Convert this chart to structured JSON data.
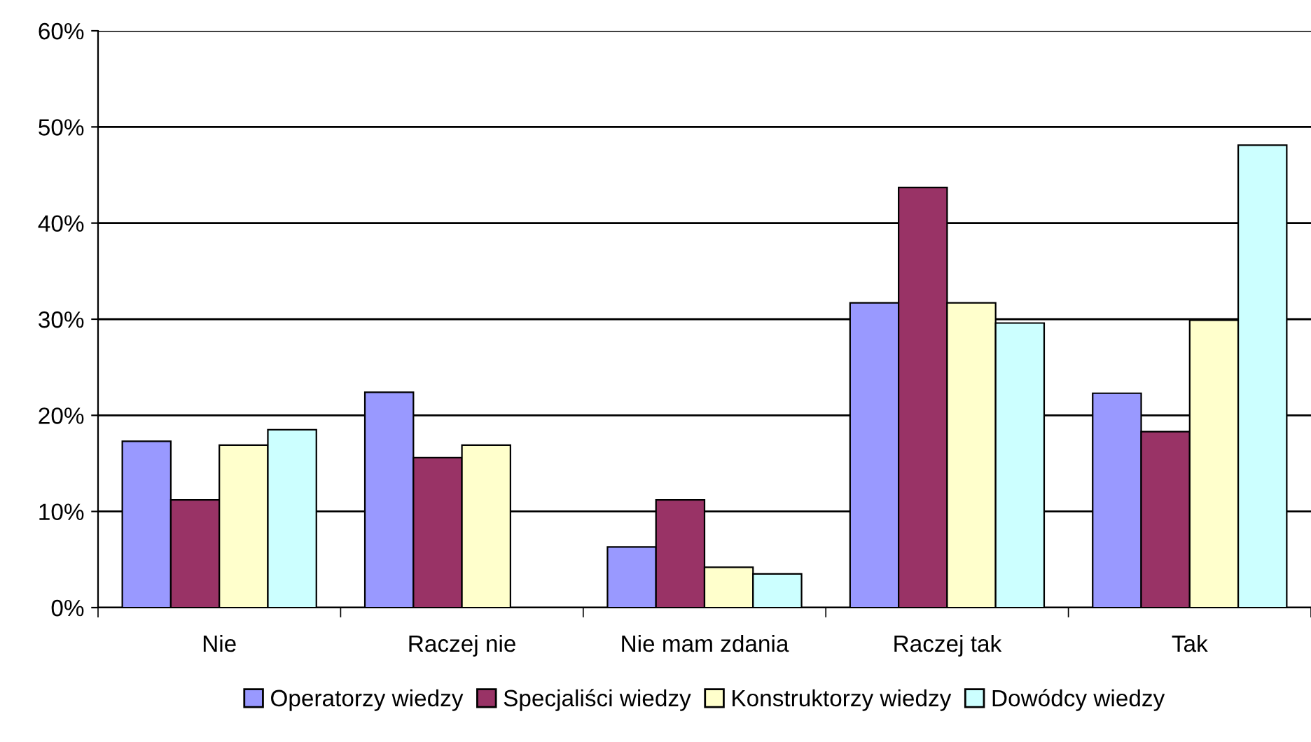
{
  "chart_data": {
    "type": "bar",
    "categories": [
      "Nie",
      "Raczej nie",
      "Nie mam zdania",
      "Raczej tak",
      "Tak"
    ],
    "series": [
      {
        "name": "Operatorzy wiedzy",
        "color": "#9999ff",
        "values": [
          17.3,
          22.4,
          6.3,
          31.7,
          22.3
        ]
      },
      {
        "name": "Specjaliści wiedzy",
        "color": "#993366",
        "values": [
          11.2,
          15.6,
          11.2,
          43.7,
          18.3
        ]
      },
      {
        "name": "Konstruktorzy wiedzy",
        "color": "#ffffcc",
        "values": [
          16.9,
          16.9,
          4.2,
          31.7,
          29.9
        ]
      },
      {
        "name": "Dowódcy wiedzy",
        "color": "#ccffff",
        "values": [
          18.5,
          null,
          3.5,
          29.6,
          48.1
        ]
      }
    ],
    "ylim": [
      0,
      60
    ],
    "yticks": [
      {
        "value": 0,
        "label": "0%"
      },
      {
        "value": 10,
        "label": "10%"
      },
      {
        "value": 20,
        "label": "20%"
      },
      {
        "value": 30,
        "label": "30%"
      },
      {
        "value": 40,
        "label": "40%"
      },
      {
        "value": 50,
        "label": "50%"
      },
      {
        "value": 60,
        "label": "60%"
      }
    ],
    "grid": "y",
    "legend": "bottom"
  }
}
